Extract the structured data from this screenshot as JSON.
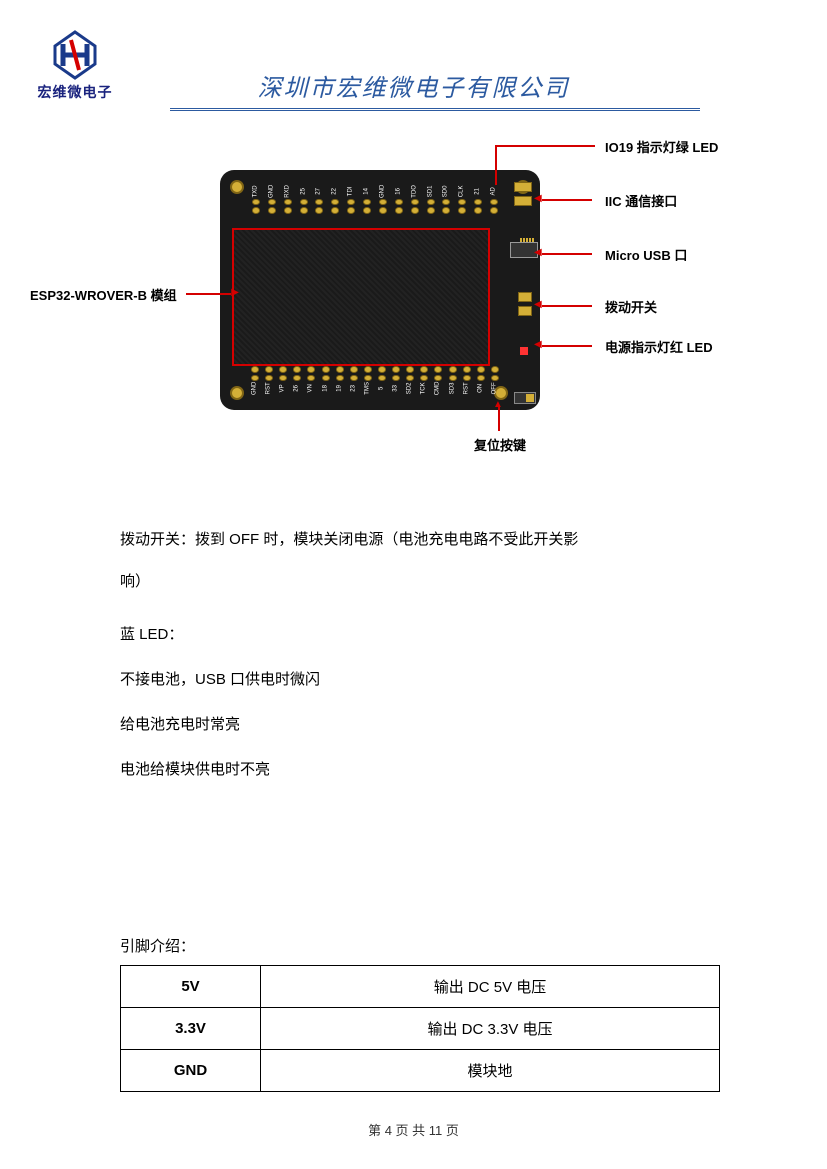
{
  "header": {
    "logo_text": "宏维微电子",
    "company_title": "深圳市宏维微电子有限公司",
    "logo_colors": {
      "primary": "#1a3a8a",
      "accent": "#d40000"
    }
  },
  "diagram": {
    "pcb_color": "#1a1a1a",
    "pad_color": "#d4af37",
    "outline_color": "#d40000",
    "pins_top": [
      "TXD",
      "GND",
      "RXD",
      "25",
      "27",
      "22",
      "TDI",
      "14",
      "GND",
      "16",
      "TDO",
      "SD1",
      "SD0",
      "CLK",
      "21",
      "AD"
    ],
    "pins_bot": [
      "GND",
      "RST",
      "VP",
      "26",
      "VN",
      "18",
      "19",
      "23",
      "TMS",
      "5",
      "33",
      "SD2",
      "TCK",
      "CMD",
      "SD3",
      "RST",
      "ON",
      "OFF"
    ],
    "callouts": {
      "left": "ESP32-WROVER-B 模组",
      "r1": "IO19 指示灯绿 LED",
      "r2": "IIC 通信接口",
      "r3": "Micro USB 口",
      "r4": "拨动开关",
      "r5": "电源指示灯红 LED",
      "bot": "复位按键"
    }
  },
  "text": {
    "p1": "拨动开关：拨到 OFF 时，模块关闭电源（电池充电电路不受此开关影",
    "p1b": "响）",
    "p2": "蓝 LED：",
    "p3": "不接电池，USB 口供电时微闪",
    "p4": "给电池充电时常亮",
    "p5": "电池给模块供电时不亮"
  },
  "pins_section": {
    "title": "引脚介绍：",
    "rows": [
      {
        "name": "5V",
        "desc": "输出 DC 5V 电压"
      },
      {
        "name": "3.3V",
        "desc": "输出 DC 3.3V 电压"
      },
      {
        "name": "GND",
        "desc": "模块地"
      }
    ]
  },
  "footer": {
    "text": "第 4 页 共 11 页"
  }
}
